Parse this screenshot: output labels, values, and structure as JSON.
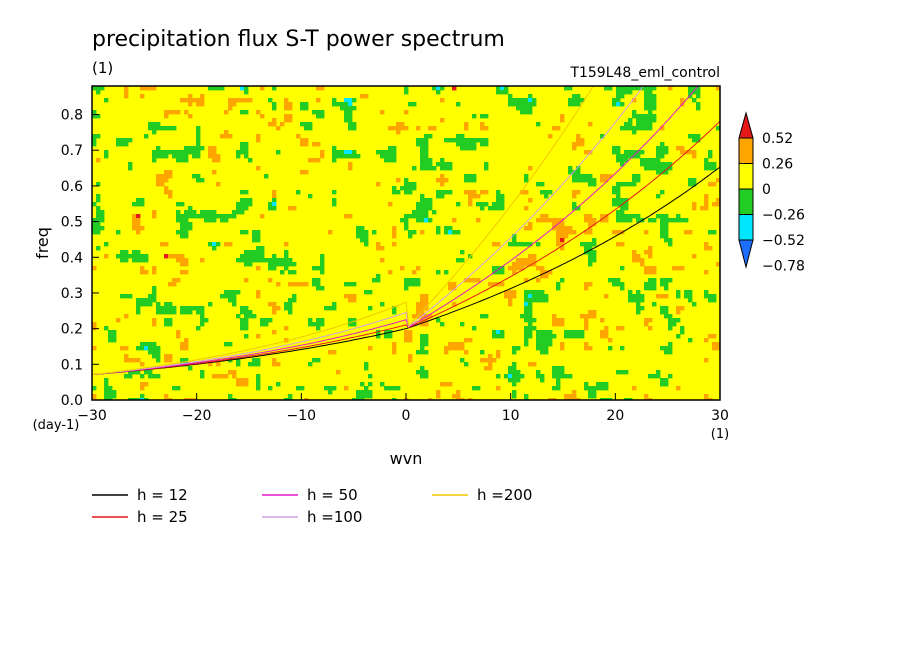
{
  "chart_data": {
    "type": "heatmap",
    "title": "precipitation flux S-T power spectrum",
    "subtitle_left": "(1)",
    "subtitle_right": "T159L48_eml_control",
    "xlabel": "wvn",
    "ylabel": "freq",
    "x_unit": "(1)",
    "y_unit": "(day-1)",
    "xlim": [
      -30,
      30
    ],
    "ylim": [
      0,
      0.88
    ],
    "x_ticks": [
      -30,
      -20,
      -10,
      0,
      10,
      20,
      30
    ],
    "y_ticks": [
      0.0,
      0.1,
      0.2,
      0.3,
      0.4,
      0.5,
      0.6,
      0.7,
      0.8
    ],
    "colorbar": {
      "levels": [
        -0.78,
        -0.52,
        -0.26,
        0,
        0.26,
        0.52
      ],
      "colors": [
        "#1e6eff",
        "#00e6ff",
        "#22cc22",
        "#ffff00",
        "#ffa500",
        "#e61919"
      ]
    },
    "series": [
      {
        "name": "h = 12",
        "h": 12,
        "color": "#000000"
      },
      {
        "name": "h = 25",
        "h": 25,
        "color": "#e61919"
      },
      {
        "name": "h = 50",
        "h": 50,
        "color": "#e619c8"
      },
      {
        "name": "h =100",
        "h": 100,
        "color": "#d2a0e6"
      },
      {
        "name": "h =200",
        "h": 200,
        "color": "#f0c800"
      }
    ]
  }
}
